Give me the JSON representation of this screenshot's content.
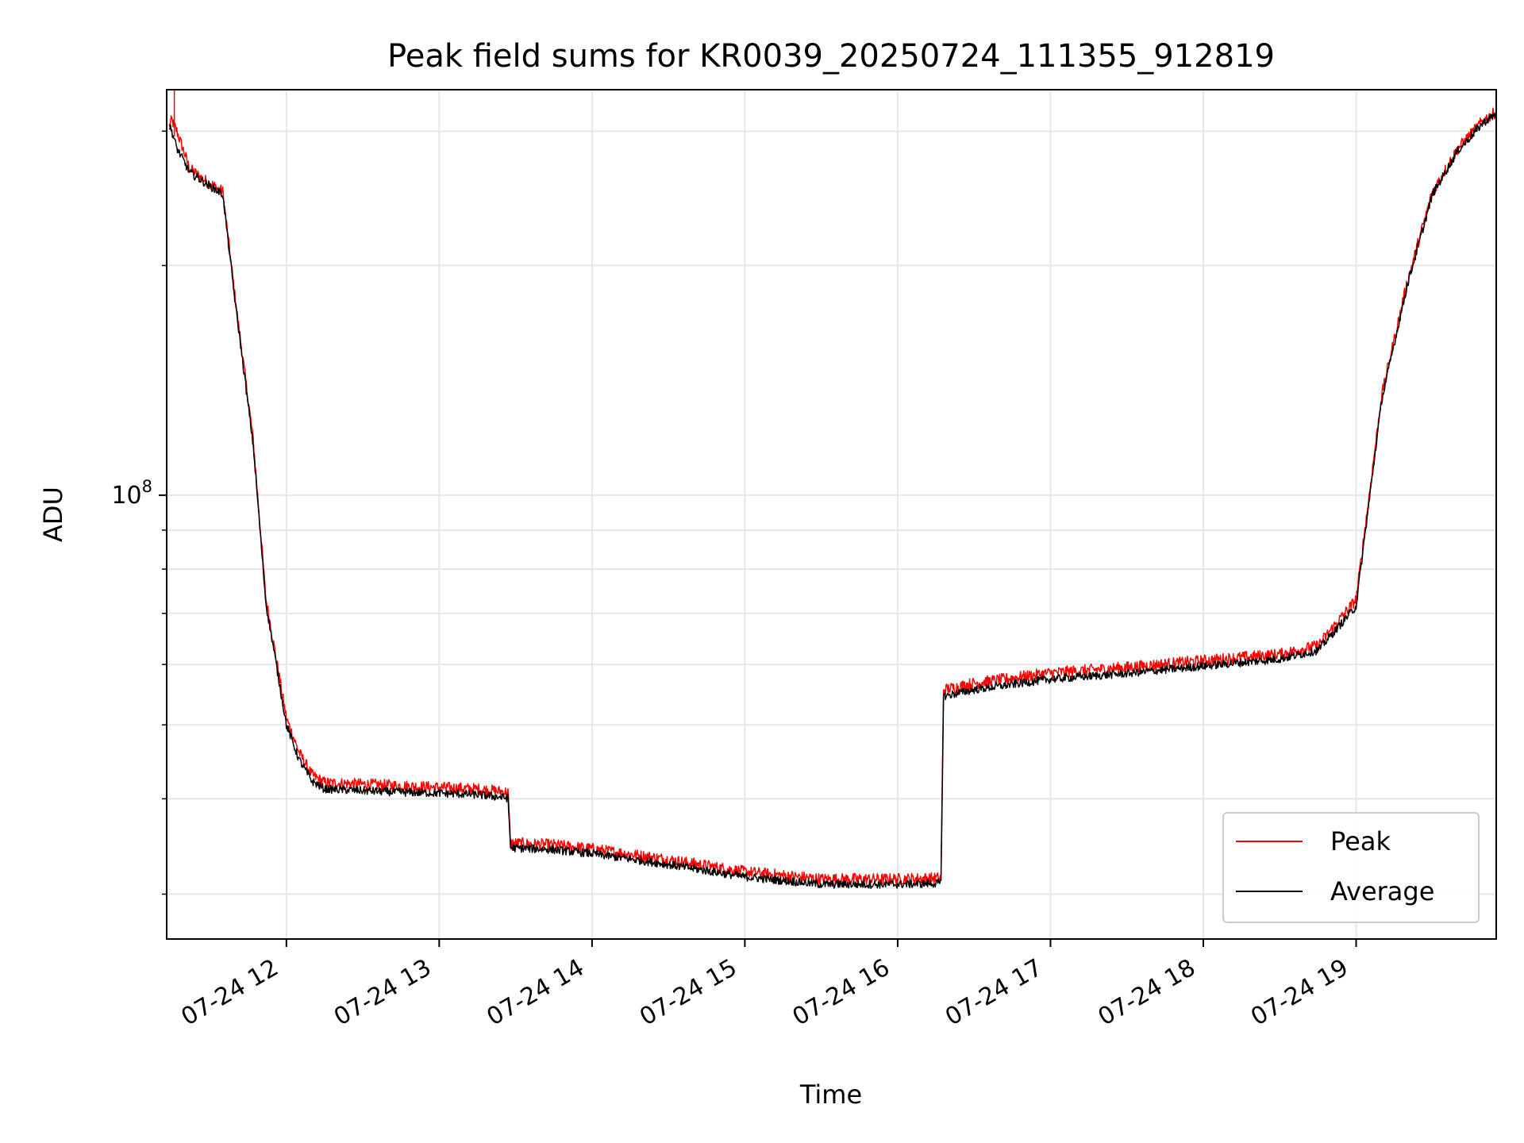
{
  "chart_data": {
    "type": "line",
    "title": "Peak field sums for KR0039_20250724_111355_912819",
    "xlabel": "Time",
    "ylabel": "ADU",
    "y_scale": "log",
    "grid": true,
    "legend_position": "lower-right",
    "xlim": [
      "2025-07-24 11:13",
      "2025-07-24 19:55"
    ],
    "ylim": [
      26200000,
      340000000
    ],
    "x_ticks": [
      {
        "time": "2025-07-24 12:00",
        "label": "07-24 12"
      },
      {
        "time": "2025-07-24 13:00",
        "label": "07-24 13"
      },
      {
        "time": "2025-07-24 14:00",
        "label": "07-24 14"
      },
      {
        "time": "2025-07-24 15:00",
        "label": "07-24 15"
      },
      {
        "time": "2025-07-24 16:00",
        "label": "07-24 16"
      },
      {
        "time": "2025-07-24 17:00",
        "label": "07-24 17"
      },
      {
        "time": "2025-07-24 18:00",
        "label": "07-24 18"
      },
      {
        "time": "2025-07-24 19:00",
        "label": "07-24 19"
      }
    ],
    "y_major_ticks": [
      {
        "value": 100000000,
        "base": "10",
        "exp": "8"
      }
    ],
    "y_minor_ticks": [
      30000000,
      40000000,
      50000000,
      60000000,
      70000000,
      80000000,
      90000000,
      200000000,
      300000000
    ],
    "series": [
      {
        "name": "Peak",
        "color": "#ff0000",
        "noise": 0.035,
        "x": [
          "2025-07-24 11:14",
          "2025-07-24 11:15",
          "2025-07-24 11:17",
          "2025-07-24 11:22",
          "2025-07-24 11:27",
          "2025-07-24 11:35",
          "2025-07-24 11:40",
          "2025-07-24 11:47",
          "2025-07-24 11:52",
          "2025-07-24 12:00",
          "2025-07-24 12:05",
          "2025-07-24 12:10",
          "2025-07-24 12:15",
          "2025-07-24 12:30",
          "2025-07-24 12:45",
          "2025-07-24 13:00",
          "2025-07-24 13:15",
          "2025-07-24 13:27",
          "2025-07-24 13:28",
          "2025-07-24 13:45",
          "2025-07-24 14:00",
          "2025-07-24 14:30",
          "2025-07-24 15:00",
          "2025-07-24 15:30",
          "2025-07-24 16:00",
          "2025-07-24 16:17",
          "2025-07-24 16:18",
          "2025-07-24 16:30",
          "2025-07-24 17:00",
          "2025-07-24 17:30",
          "2025-07-24 18:00",
          "2025-07-24 18:30",
          "2025-07-24 18:45",
          "2025-07-24 19:00",
          "2025-07-24 19:10",
          "2025-07-24 19:20",
          "2025-07-24 19:30",
          "2025-07-24 19:40",
          "2025-07-24 19:50",
          "2025-07-24 19:55"
        ],
        "y": [
          305000000,
          310000000,
          300000000,
          268000000,
          260000000,
          250000000,
          180000000,
          118000000,
          73000000,
          51000000,
          46000000,
          43000000,
          42000000,
          41800000,
          41600000,
          41400000,
          41200000,
          40800000,
          35000000,
          34800000,
          34400000,
          33300000,
          32100000,
          31400000,
          31400000,
          31500000,
          55600000,
          56700000,
          58500000,
          59500000,
          60700000,
          61900000,
          63500000,
          73000000,
          135000000,
          190000000,
          250000000,
          285000000,
          310000000,
          318000000
        ]
      },
      {
        "name": "Average",
        "color": "#000000",
        "noise": 0.025,
        "x": [
          "2025-07-24 11:14",
          "2025-07-24 11:15",
          "2025-07-24 11:17",
          "2025-07-24 11:22",
          "2025-07-24 11:27",
          "2025-07-24 11:35",
          "2025-07-24 11:40",
          "2025-07-24 11:47",
          "2025-07-24 11:52",
          "2025-07-24 12:00",
          "2025-07-24 12:05",
          "2025-07-24 12:10",
          "2025-07-24 12:15",
          "2025-07-24 12:30",
          "2025-07-24 12:45",
          "2025-07-24 13:00",
          "2025-07-24 13:15",
          "2025-07-24 13:27",
          "2025-07-24 13:28",
          "2025-07-24 13:45",
          "2025-07-24 14:00",
          "2025-07-24 14:30",
          "2025-07-24 15:00",
          "2025-07-24 15:30",
          "2025-07-24 16:00",
          "2025-07-24 16:17",
          "2025-07-24 16:18",
          "2025-07-24 16:30",
          "2025-07-24 17:00",
          "2025-07-24 17:30",
          "2025-07-24 18:00",
          "2025-07-24 18:30",
          "2025-07-24 18:45",
          "2025-07-24 19:00",
          "2025-07-24 19:10",
          "2025-07-24 19:20",
          "2025-07-24 19:30",
          "2025-07-24 19:40",
          "2025-07-24 19:50",
          "2025-07-24 19:55"
        ],
        "y": [
          305000000,
          300000000,
          285000000,
          265000000,
          258000000,
          248000000,
          178000000,
          116000000,
          72000000,
          50000000,
          45000000,
          42200000,
          41200000,
          41000000,
          40800000,
          40700000,
          40500000,
          40100000,
          34500000,
          34300000,
          33900000,
          32800000,
          31600000,
          30900000,
          30900000,
          31000000,
          54500000,
          55600000,
          57400000,
          58400000,
          59700000,
          61000000,
          62600000,
          71500000,
          133000000,
          188000000,
          248000000,
          283000000,
          308000000,
          316000000
        ]
      }
    ]
  }
}
